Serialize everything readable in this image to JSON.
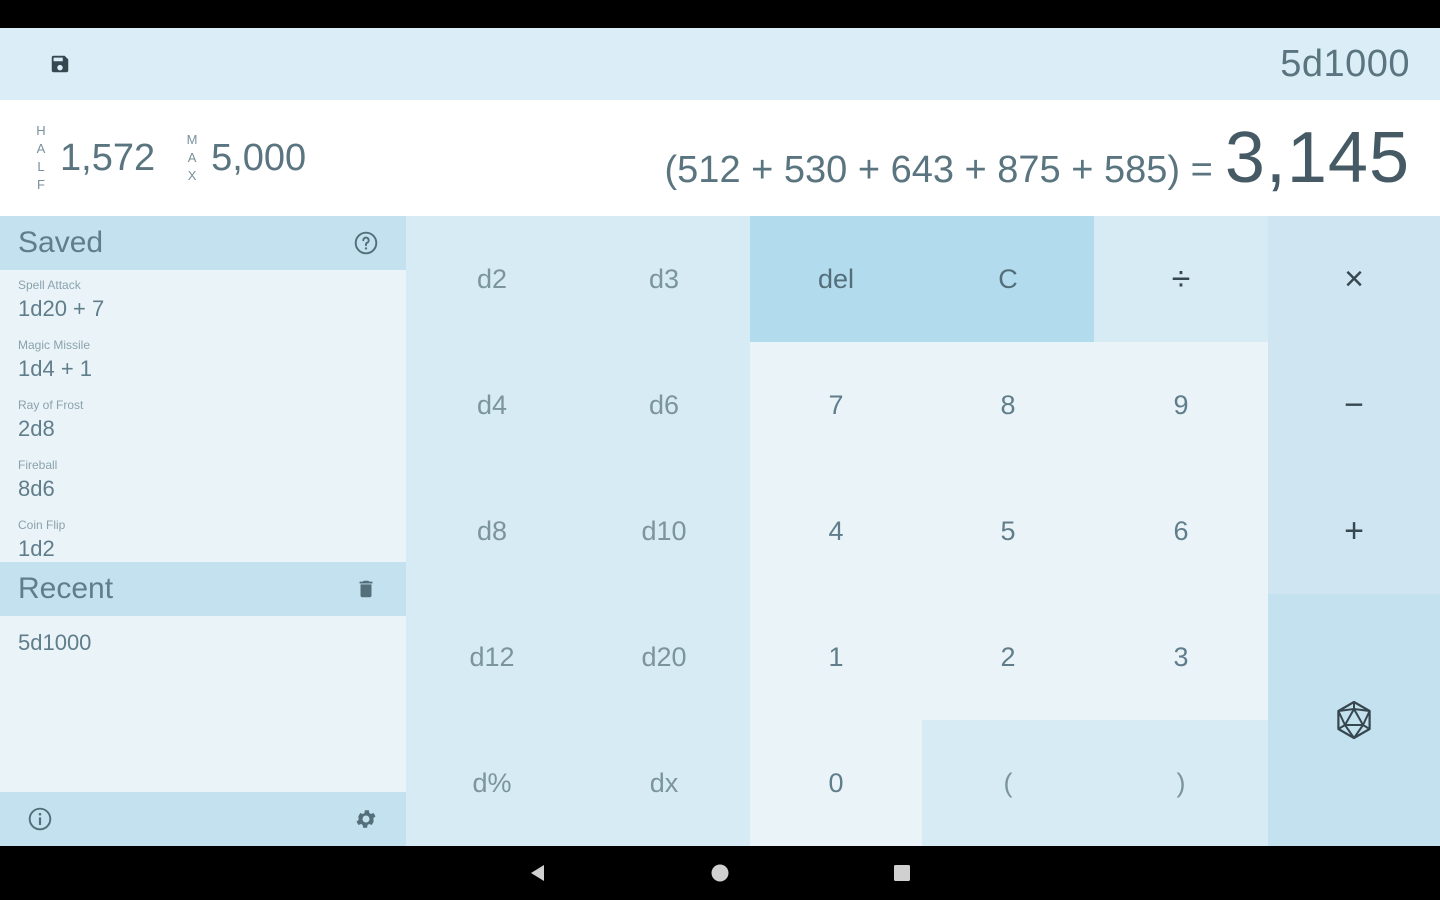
{
  "toolbar": {
    "save_icon": "save-icon",
    "current_expression": "5d1000"
  },
  "result": {
    "half_label": [
      "H",
      "A",
      "L",
      "F"
    ],
    "half_value": "1,572",
    "max_label": [
      "M",
      "A",
      "X"
    ],
    "max_value": "5,000",
    "breakdown": "(512 + 530 + 643 + 875 + 585) =",
    "total": "3,145"
  },
  "sidebar": {
    "saved_title": "Saved",
    "saved_items": [
      {
        "name": "Spell Attack",
        "formula": "1d20 + 7"
      },
      {
        "name": "Magic Missile",
        "formula": "1d4 + 1"
      },
      {
        "name": "Ray of Frost",
        "formula": "2d8"
      },
      {
        "name": "Fireball",
        "formula": "8d6"
      },
      {
        "name": "Coin Flip",
        "formula": "1d2"
      }
    ],
    "recent_title": "Recent",
    "recent_items": [
      "5d1000"
    ]
  },
  "keys": {
    "d2": "d2",
    "d3": "d3",
    "del": "del",
    "clear": "C",
    "divide": "÷",
    "multiply": "×",
    "d4": "d4",
    "d6": "d6",
    "seven": "7",
    "eight": "8",
    "nine": "9",
    "minus": "−",
    "d8": "d8",
    "d10": "d10",
    "four": "4",
    "five": "5",
    "six": "6",
    "plus": "+",
    "d12": "d12",
    "d20": "d20",
    "one": "1",
    "two": "2",
    "three": "3",
    "d_percent": "d%",
    "dx": "dx",
    "zero": "0",
    "lparen": "(",
    "rparen": ")"
  },
  "colors": {
    "toolbar_bg": "#dbeef7",
    "header_bg": "#c3e1ef",
    "edit_key_bg": "#b3dbee",
    "dice_key_bg": "#d7ebf4",
    "num_key_bg": "#eaf4f8"
  }
}
